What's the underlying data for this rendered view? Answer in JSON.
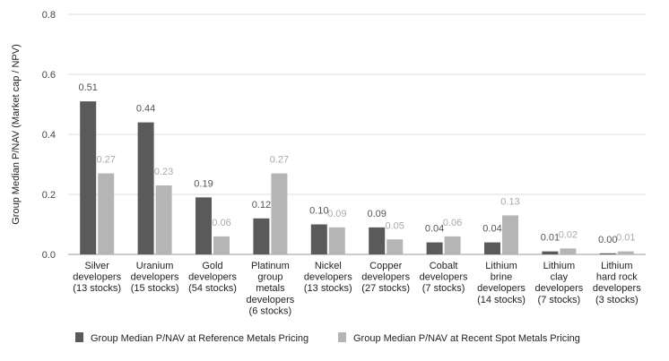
{
  "chart_data": {
    "type": "bar",
    "ylabel": "Group Median P/NAV (Market cap / NPV)",
    "ylim": [
      0,
      0.8
    ],
    "yticks": [
      "0.0",
      "0.2",
      "0.4",
      "0.6",
      "0.8"
    ],
    "ytick_values": [
      0,
      0.2,
      0.4,
      0.6,
      0.8
    ],
    "grid": true,
    "legend_position": "bottom",
    "categories": [
      [
        "Silver",
        "developers",
        "(13 stocks)"
      ],
      [
        "Uranium",
        "developers",
        "(15 stocks)"
      ],
      [
        "Gold",
        "developers",
        "(54 stocks)"
      ],
      [
        "Platinum",
        "group",
        "metals",
        "developers",
        "(6 stocks)"
      ],
      [
        "Nickel",
        "developers",
        "(13 stocks)"
      ],
      [
        "Copper",
        "developers",
        "(27 stocks)"
      ],
      [
        "Cobalt",
        "developers",
        "(7 stocks)"
      ],
      [
        "Lithium",
        "brine",
        "developers",
        "(14 stocks)"
      ],
      [
        "Lithium",
        "clay",
        "developers",
        "(7 stocks)"
      ],
      [
        "Lithium",
        "hard rock",
        "developers",
        "(3 stocks)"
      ]
    ],
    "series": [
      {
        "name": "Group Median P/NAV at Reference Metals Pricing",
        "color": "#5a5a5a",
        "label_color": "#555555",
        "values": [
          0.51,
          0.44,
          0.19,
          0.12,
          0.1,
          0.09,
          0.04,
          0.04,
          0.01,
          0.0
        ],
        "labels": [
          "0.51",
          "0.44",
          "0.19",
          "0.12",
          "0.10",
          "0.09",
          "0.04",
          "0.04",
          "0.01",
          "0.00"
        ]
      },
      {
        "name": "Group Median P/NAV at Recent Spot Metals Pricing",
        "color": "#b5b5b5",
        "label_color": "#aaaaaa",
        "values": [
          0.27,
          0.23,
          0.06,
          0.27,
          0.09,
          0.05,
          0.06,
          0.13,
          0.02,
          0.01
        ],
        "labels": [
          "0.27",
          "0.23",
          "0.06",
          "0.27",
          "0.09",
          "0.05",
          "0.06",
          "0.13",
          "0.02",
          "0.01"
        ]
      }
    ]
  }
}
